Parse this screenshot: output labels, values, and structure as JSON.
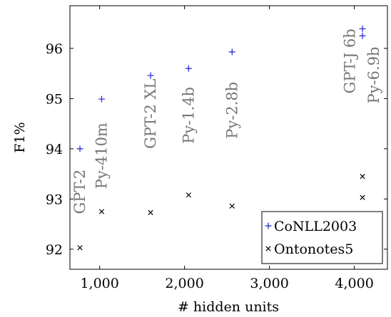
{
  "chart_data": {
    "type": "scatter",
    "xlabel": "# hidden units",
    "ylabel": "F1%",
    "xlim": [
      650,
      4390
    ],
    "ylim": [
      91.6,
      96.85
    ],
    "x_ticks": [
      1000,
      2000,
      3000,
      4000
    ],
    "x_tick_labels": [
      "1,000",
      "2,000",
      "3,000",
      "4,000"
    ],
    "y_ticks": [
      92,
      93,
      94,
      95,
      96
    ],
    "y_tick_labels": [
      "92",
      "93",
      "94",
      "95",
      "96"
    ],
    "grid": false,
    "legend_position": "bottom-right",
    "series": [
      {
        "name": "CoNLL2003",
        "marker": "+",
        "color": "#1f1fd0",
        "points": [
          {
            "x": 768,
            "y": 94.0
          },
          {
            "x": 1024,
            "y": 94.99
          },
          {
            "x": 1600,
            "y": 95.46
          },
          {
            "x": 2048,
            "y": 95.6
          },
          {
            "x": 2560,
            "y": 95.93
          },
          {
            "x": 4096,
            "y": 96.39
          },
          {
            "x": 4096,
            "y": 96.25
          }
        ]
      },
      {
        "name": "Ontonotes5",
        "marker": "x",
        "color": "#000000",
        "points": [
          {
            "x": 768,
            "y": 92.03
          },
          {
            "x": 1024,
            "y": 92.75
          },
          {
            "x": 1600,
            "y": 92.73
          },
          {
            "x": 2048,
            "y": 93.08
          },
          {
            "x": 2560,
            "y": 92.86
          },
          {
            "x": 4096,
            "y": 93.45
          },
          {
            "x": 4096,
            "y": 93.03
          }
        ]
      }
    ],
    "annotations": [
      {
        "text": "GPT-2",
        "x": 768,
        "y": 92.7
      },
      {
        "text": "Py-410m",
        "x": 1024,
        "y": 93.2
      },
      {
        "text": "GPT-2 XL",
        "x": 1600,
        "y": 94.0
      },
      {
        "text": "Py-1.4b",
        "x": 2048,
        "y": 94.1
      },
      {
        "text": "Py-2.8b",
        "x": 2560,
        "y": 94.2
      },
      {
        "text": "GPT-J 6b",
        "x": 3950,
        "y": 95.1
      },
      {
        "text": "Py-6.9b",
        "x": 4230,
        "y": 94.9
      }
    ]
  }
}
